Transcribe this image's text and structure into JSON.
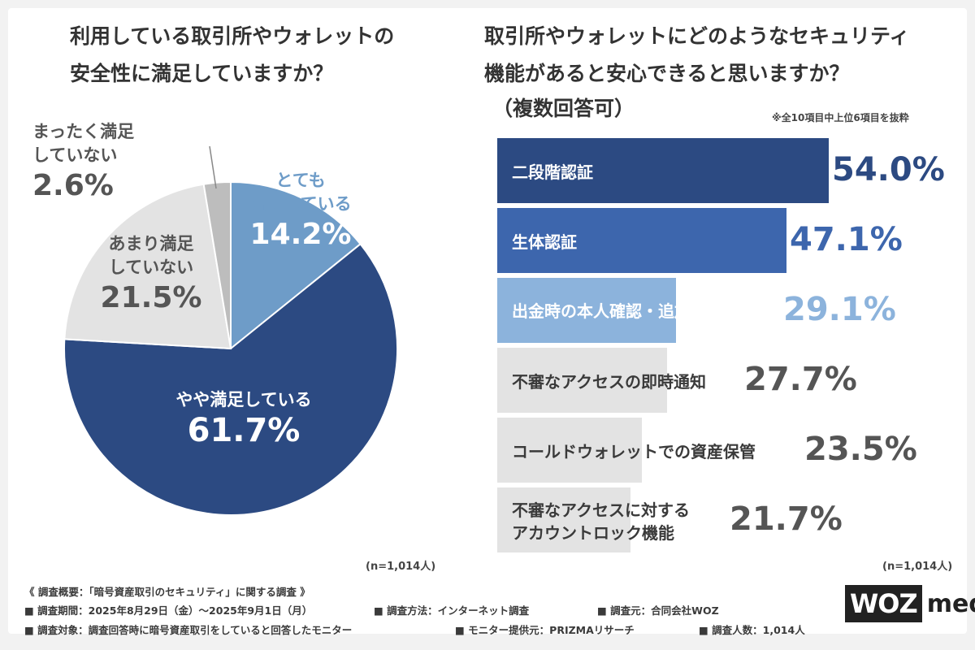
{
  "left": {
    "title_line1": "利用している取引所やウォレットの",
    "title_line2": "安全性に満足していますか？",
    "n_note": "(n=1,014人)"
  },
  "right": {
    "title_line1": "取引所やウォレットにどのようなセキュリティ",
    "title_line2": "機能があると安心できると思いますか？",
    "subtitle": "（複数回答可）",
    "note": "※全10項目中上位6項目を抜粋",
    "n_note": "(n=1,014人)"
  },
  "pie_labels": [
    {
      "line1": "とても",
      "line2": "満足している",
      "val": "14.2%"
    },
    {
      "line1": "やや満足している",
      "line2": "",
      "val": "61.7%"
    },
    {
      "line1": "あまり満足",
      "line2": "していない",
      "val": "21.5%"
    },
    {
      "line1": "まったく満足",
      "line2": "していない",
      "val": "2.6%"
    }
  ],
  "bar_labels": [
    {
      "line1": "二段階認証",
      "line2": "",
      "val": "54.0%"
    },
    {
      "line1": "生体認証",
      "line2": "",
      "val": "47.1%"
    },
    {
      "line1": "出金時の本人確認・追加認証",
      "line2": "",
      "val": "29.1%"
    },
    {
      "line1": "不審なアクセスの即時通知",
      "line2": "",
      "val": "27.7%"
    },
    {
      "line1": "コールドウォレットでの資産保管",
      "line2": "",
      "val": "23.5%"
    },
    {
      "line1": "不審なアクセスに対する",
      "line2": "アカウントロック機能",
      "val": "21.7%"
    }
  ],
  "chart_data": [
    {
      "type": "pie",
      "title": "利用している取引所やウォレットの安全性に満足していますか？",
      "categories": [
        "とても満足している",
        "やや満足している",
        "あまり満足していない",
        "まったく満足していない"
      ],
      "values": [
        14.2,
        61.7,
        21.5,
        2.6
      ],
      "colors": [
        "#6e9cc8",
        "#2c4a82",
        "#e3e3e3",
        "#bdbdbd"
      ]
    },
    {
      "type": "bar",
      "title": "取引所やウォレットにどのようなセキュリティ機能があると安心できると思いますか？（複数回答可）",
      "categories": [
        "二段階認証",
        "生体認証",
        "出金時の本人確認・追加認証",
        "不審なアクセスの即時通知",
        "コールドウォレットでの資産保管",
        "不審なアクセスに対するアカウントロック機能"
      ],
      "values": [
        54.0,
        47.1,
        29.1,
        27.7,
        23.5,
        21.7
      ],
      "colors": [
        "#2c4a82",
        "#3d66ad",
        "#8cb3dc",
        "#e3e3e3",
        "#e3e3e3",
        "#e3e3e3"
      ]
    }
  ],
  "footer": {
    "line1": "《 調査概要：「暗号資産取引のセキュリティ」に関する調査 》",
    "period": "■ 調査期間：2025年8月29日（金）～2025年9月1日（月）",
    "method": "■ 調査方法：インターネット調査",
    "source": "■ 調査元：合同会社WOZ",
    "target": "■ 調査対象：調査回答時に暗号資産取引をしていると回答したモニター",
    "provider": "■ モニター提供元：PRIZMAリサーチ",
    "count": "■ 調査人数：1,014人"
  },
  "logo": {
    "box": "WOZ",
    "text": "media"
  }
}
